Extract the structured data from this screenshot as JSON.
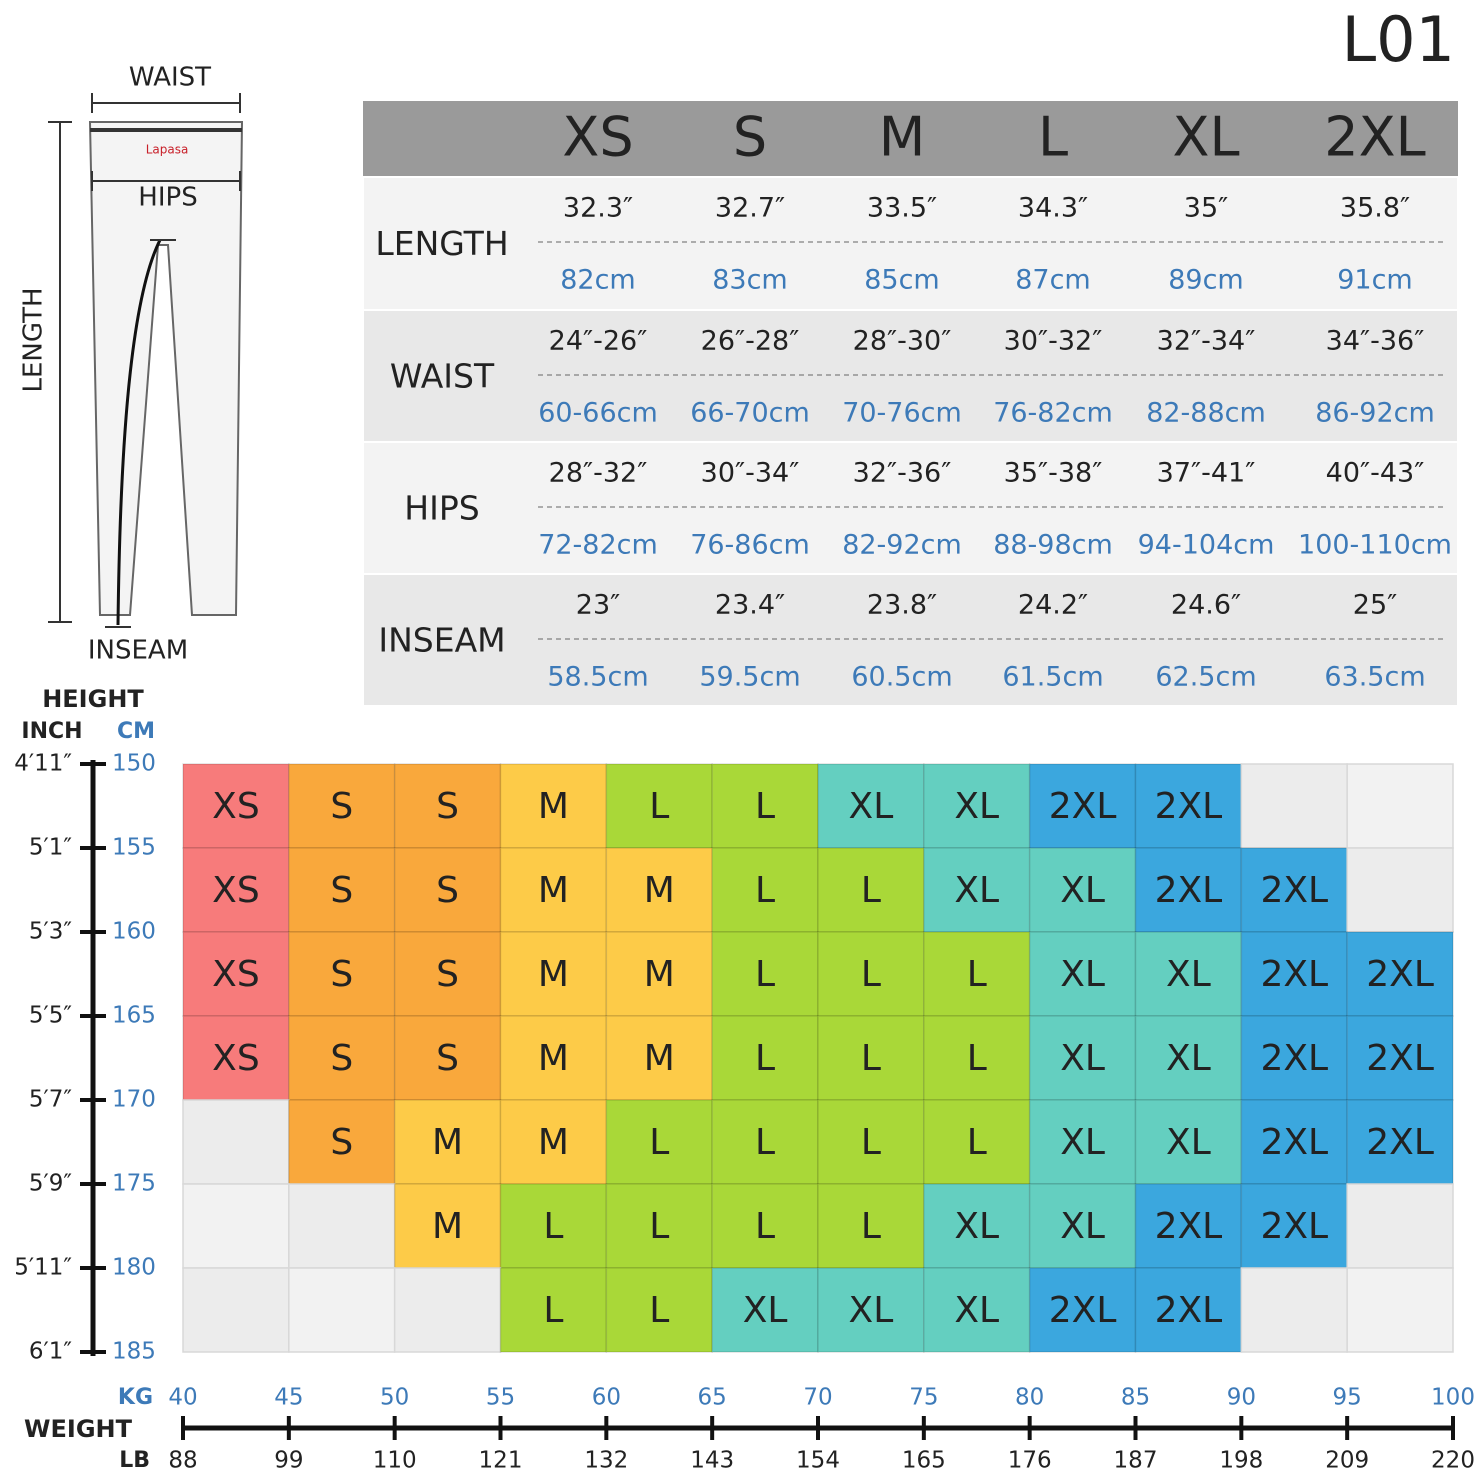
{
  "code": "L01",
  "diagram": {
    "waist": "WAIST",
    "hips": "HIPS",
    "length": "LENGTH",
    "inseam": "INSEAM",
    "brand": "Lapasa"
  },
  "table": {
    "sizes": [
      "XS",
      "S",
      "M",
      "L",
      "XL",
      "2XL"
    ],
    "rows": [
      {
        "label": "LENGTH",
        "inch": [
          "32.3″",
          "32.7″",
          "33.5″",
          "34.3″",
          "35″",
          "35.8″"
        ],
        "cm": [
          "82cm",
          "83cm",
          "85cm",
          "87cm",
          "89cm",
          "91cm"
        ]
      },
      {
        "label": "WAIST",
        "inch": [
          "24″-26″",
          "26″-28″",
          "28″-30″",
          "30″-32″",
          "32″-34″",
          "34″-36″"
        ],
        "cm": [
          "60-66cm",
          "66-70cm",
          "70-76cm",
          "76-82cm",
          "82-88cm",
          "86-92cm"
        ]
      },
      {
        "label": "HIPS",
        "inch": [
          "28″-32″",
          "30″-34″",
          "32″-36″",
          "35″-38″",
          "37″-41″",
          "40″-43″"
        ],
        "cm": [
          "72-82cm",
          "76-86cm",
          "82-92cm",
          "88-98cm",
          "94-104cm",
          "100-110cm"
        ]
      },
      {
        "label": "INSEAM",
        "inch": [
          "23″",
          "23.4″",
          "23.8″",
          "24.2″",
          "24.6″",
          "25″"
        ],
        "cm": [
          "58.5cm",
          "59.5cm",
          "60.5cm",
          "61.5cm",
          "62.5cm",
          "63.5cm"
        ]
      }
    ]
  },
  "fit_grid": {
    "height_title": "HEIGHT",
    "inch_title": "INCH",
    "cm_title": "CM",
    "height_inch": [
      "4′11″",
      "5′1″",
      "5′3″",
      "5′5″",
      "5′7″",
      "5′9″",
      "5′11″",
      "6′1″"
    ],
    "height_cm": [
      150,
      155,
      160,
      165,
      170,
      175,
      180,
      185
    ],
    "weight_title": "WEIGHT",
    "kg_title": "KG",
    "lb_title": "LB",
    "weight_kg": [
      40,
      45,
      50,
      55,
      60,
      65,
      70,
      75,
      80,
      85,
      90,
      95,
      100
    ],
    "weight_lb": [
      88,
      99,
      110,
      121,
      132,
      143,
      154,
      165,
      176,
      187,
      198,
      209,
      220
    ],
    "cells": [
      [
        "XS",
        "S",
        "S",
        "M",
        "L",
        "L",
        "XL",
        "XL",
        "2XL",
        "2XL",
        null,
        null
      ],
      [
        "XS",
        "S",
        "S",
        "M",
        "M",
        "L",
        "L",
        "XL",
        "XL",
        "2XL",
        "2XL",
        null
      ],
      [
        "XS",
        "S",
        "S",
        "M",
        "M",
        "L",
        "L",
        "L",
        "XL",
        "XL",
        "2XL",
        "2XL"
      ],
      [
        "XS",
        "S",
        "S",
        "M",
        "M",
        "L",
        "L",
        "L",
        "XL",
        "XL",
        "2XL",
        "2XL"
      ],
      [
        null,
        "S",
        "M",
        "M",
        "L",
        "L",
        "L",
        "L",
        "XL",
        "XL",
        "2XL",
        "2XL"
      ],
      [
        null,
        null,
        "M",
        "L",
        "L",
        "L",
        "L",
        "XL",
        "XL",
        "2XL",
        "2XL",
        null
      ],
      [
        null,
        null,
        null,
        "L",
        "L",
        "XL",
        "XL",
        "XL",
        "2XL",
        "2XL",
        null,
        null
      ]
    ],
    "size_colors": {
      "XS": "#f77b7b",
      "S": "#f9a83c",
      "M": "#fdcb48",
      "L": "#a9d838",
      "XL": "#64cfc0",
      "2XL": "#3ba7de"
    }
  }
}
